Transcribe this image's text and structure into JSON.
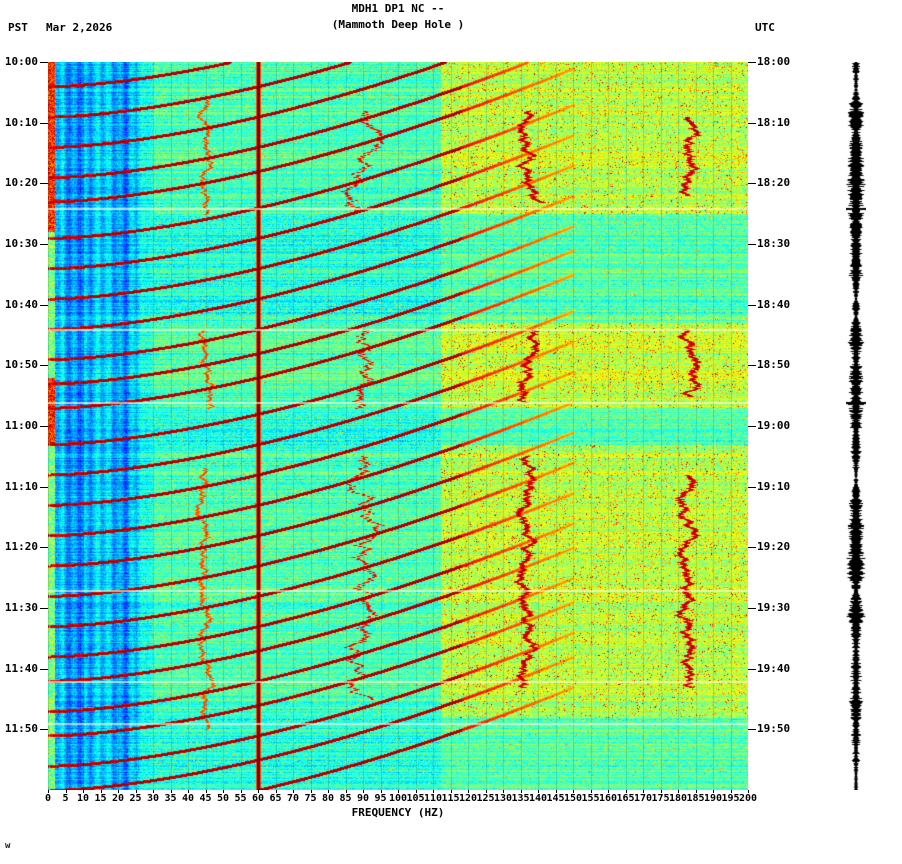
{
  "header": {
    "title": "MDH1 DP1 NC --",
    "subtitle": "(Mammoth Deep Hole )",
    "tz_left": "PST",
    "date": "Mar 2,2026",
    "tz_right": "UTC"
  },
  "footer_mark": "w",
  "chart_data": {
    "type": "heatmap",
    "subtype": "seismic-spectrogram",
    "title": "MDH1 DP1 NC --",
    "subtitle": "(Mammoth Deep Hole )",
    "colormap": "jet",
    "duration_minutes": 120,
    "x_axis": {
      "label": "FREQUENCY (HZ)",
      "min": 0,
      "max": 200,
      "tick_step": 5
    },
    "y_axis_left": {
      "timezone": "PST",
      "tick_interval_minutes": 10,
      "ticks": [
        "10:00",
        "10:10",
        "10:20",
        "10:30",
        "10:40",
        "10:50",
        "11:00",
        "11:10",
        "11:20",
        "11:30",
        "11:40",
        "11:50"
      ]
    },
    "y_axis_right": {
      "timezone": "UTC",
      "ticks": [
        "18:00",
        "18:10",
        "18:20",
        "18:30",
        "18:40",
        "18:50",
        "19:00",
        "19:10",
        "19:20",
        "19:30",
        "19:40",
        "19:50"
      ]
    },
    "events": {
      "harmonic_arcs": {
        "description": "Repeating curved frequency glides sweeping from ~150 Hz down to 0 Hz, recurring every few minutes",
        "end_minutes": [
          4,
          9,
          14,
          19,
          23,
          29,
          34,
          39,
          44,
          49,
          53,
          57,
          63,
          68,
          73,
          78,
          83,
          88,
          93,
          98,
          102,
          107,
          111,
          116,
          120,
          125
        ],
        "duration_minutes": 22,
        "max_freq_hz": 150
      },
      "powerline_hz": 60,
      "narrowband_lines": [
        {
          "freq_hz": 45,
          "strength": 0.85,
          "width": 1,
          "wander": 1.5,
          "windows_minutes": [
            [
              6,
              25
            ],
            [
              44,
              57
            ],
            [
              67,
              110
            ]
          ]
        },
        {
          "freq_hz": 90,
          "strength": 0.93,
          "width": 1,
          "wander": 3.0,
          "windows_minutes": [
            [
              8,
              25
            ],
            [
              44,
              57
            ],
            [
              65,
              105
            ]
          ]
        },
        {
          "freq_hz": 137,
          "strength": 1.0,
          "width": 2,
          "wander": 2.0,
          "windows_minutes": [
            [
              8,
              23
            ],
            [
              44,
              56
            ],
            [
              65,
              103
            ]
          ]
        },
        {
          "freq_hz": 182,
          "strength": 1.0,
          "width": 2,
          "wander": 2.0,
          "windows_minutes": [
            [
              9,
              22
            ],
            [
              44,
              55
            ],
            [
              68,
              103
            ]
          ]
        }
      ],
      "gap_rows_minutes": [
        24,
        44,
        56,
        87,
        102,
        109
      ],
      "high_freq_wash_windows": [
        [
          0,
          25
        ],
        [
          43,
          57
        ],
        [
          63,
          108
        ]
      ],
      "low_freq_blue_band_max_hz": 22,
      "microseism_windows": [
        [
          0,
          28
        ],
        [
          52,
          63
        ]
      ]
    },
    "colors": {
      "background": "#ffffff",
      "text": "#000000",
      "powerline_line": "#7f0000",
      "grid_line": "rgba(0,60,80,0.20)"
    }
  },
  "waveform_panel": {
    "description": "vertical amplitude (seismogram) strip at right edge",
    "mark_minutes": [
      24,
      56
    ]
  }
}
